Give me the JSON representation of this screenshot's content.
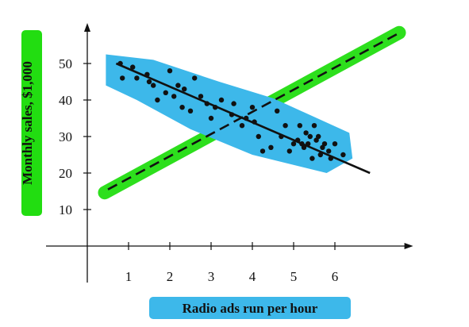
{
  "chart_data": {
    "type": "scatter",
    "title": "",
    "xlabel": "Radio ads run per hour",
    "ylabel": "Monthly sales, $1,000",
    "xlim": [
      -1,
      7.8
    ],
    "ylim": [
      -10,
      60
    ],
    "x_ticks": [
      "1",
      "2",
      "3",
      "4",
      "5",
      "6"
    ],
    "y_ticks": [
      "10",
      "20",
      "30",
      "40",
      "50"
    ],
    "grid": false,
    "legend": "none",
    "series": [
      {
        "kind": "points",
        "x": [
          0.8,
          0.85,
          1.1,
          1.2,
          1.45,
          1.5,
          1.6,
          1.7,
          1.9,
          2.0,
          2.1,
          2.2,
          2.3,
          2.35,
          2.5,
          2.6,
          2.75,
          2.9,
          3.0,
          3.1,
          3.25,
          3.5,
          3.55,
          3.75,
          3.85,
          4.0,
          4.05,
          4.15,
          4.25,
          4.45,
          4.6,
          4.7,
          4.8,
          4.9,
          5.0,
          5.1,
          5.15,
          5.2,
          5.25,
          5.3,
          5.35,
          5.4,
          5.45,
          5.5,
          5.55,
          5.6,
          5.65,
          5.7,
          5.75,
          5.85,
          5.9,
          6.0,
          6.2
        ],
        "y": [
          50,
          46,
          49,
          46,
          47,
          45,
          44,
          40,
          42,
          48,
          41,
          44,
          38,
          43,
          37,
          46,
          41,
          39,
          35,
          38,
          40,
          36,
          39,
          33,
          35,
          38,
          34,
          30,
          26,
          27,
          37,
          30,
          33,
          26,
          28,
          29,
          33,
          28,
          27,
          31,
          28,
          30,
          24,
          33,
          29,
          30,
          25,
          27,
          28,
          26,
          24,
          28,
          25
        ]
      },
      {
        "kind": "solid-line",
        "x": [
          0.7,
          6.85
        ],
        "y": [
          50,
          20
        ]
      },
      {
        "kind": "dashed-line",
        "x": [
          0.5,
          7.5
        ],
        "y": [
          15.5,
          58
        ]
      }
    ],
    "highlight_colors": {
      "blue": "#3db8ea",
      "green": "#22dd11"
    },
    "colors": {
      "axis": "#111111",
      "points": "#111111",
      "lines": "#111111"
    }
  }
}
